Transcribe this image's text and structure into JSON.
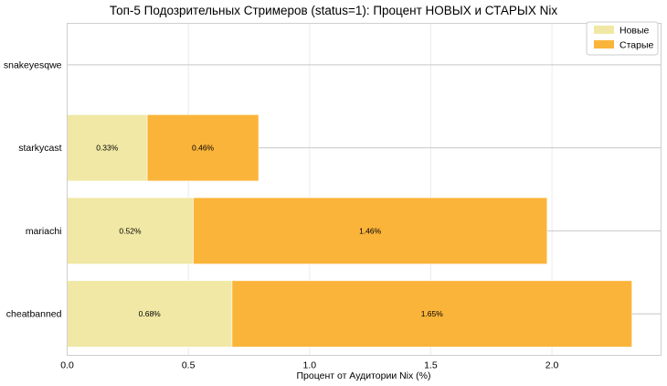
{
  "chart_data": {
    "type": "bar",
    "orientation": "horizontal",
    "stacked": true,
    "title": "Топ-5 Подозрительных Стримеров (status=1): Процент НОВЫХ и СТАРЫХ Nix",
    "xlabel": "Процент от Аудитории Nix (%)",
    "ylabel": "",
    "xlim": [
      0,
      2.45
    ],
    "xticks": [
      "0.0",
      "0.5",
      "1.0",
      "1.5",
      "2.0"
    ],
    "xtick_values": [
      0.0,
      0.5,
      1.0,
      1.5,
      2.0
    ],
    "grid": true,
    "legend_position": "top-right",
    "categories": [
      "snakeyesqwe",
      "starkycast",
      "mariachi",
      "cheatbanned"
    ],
    "series": [
      {
        "name": "Новые",
        "color": "#f0e8a4",
        "values": [
          0,
          0.33,
          0.52,
          0.68
        ],
        "labels": [
          "",
          "0.33%",
          "0.52%",
          "0.68%"
        ]
      },
      {
        "name": "Старые",
        "color": "#fbb43a",
        "values": [
          0,
          0.46,
          1.46,
          1.65
        ],
        "labels": [
          "",
          "0.46%",
          "1.46%",
          "1.65%"
        ]
      }
    ]
  }
}
